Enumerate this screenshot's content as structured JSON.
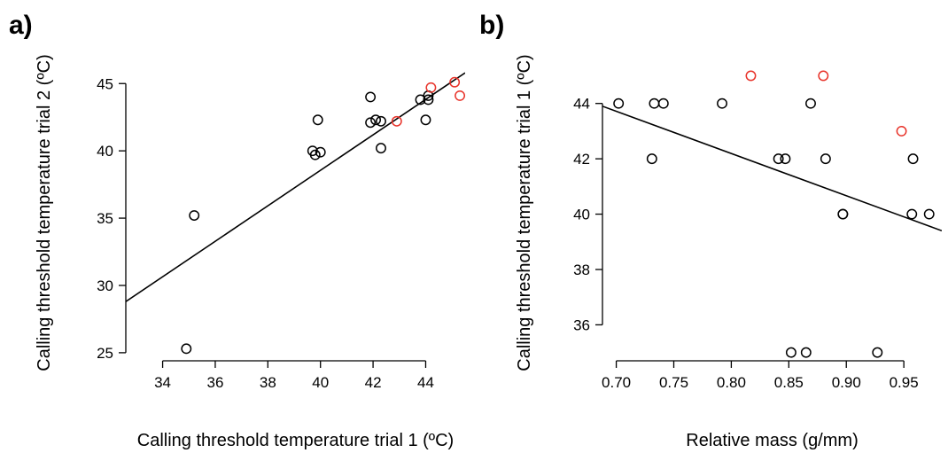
{
  "chart_data": [
    {
      "type": "scatter",
      "panel_label": "a)",
      "xlabel": "Calling threshold temperature trial 1 (ºC)",
      "ylabel": "Calling threshold temperature trial 2 (ºC)",
      "xlim": [
        32.6,
        45.5
      ],
      "ylim": [
        24.4,
        46.4
      ],
      "xticks": [
        34,
        36,
        38,
        40,
        42,
        44
      ],
      "yticks": [
        25,
        30,
        35,
        40,
        45
      ],
      "grid": false,
      "series": [
        {
          "color": "#000000",
          "points": [
            {
              "x": 34.9,
              "y": 25.3
            },
            {
              "x": 35.2,
              "y": 35.2
            },
            {
              "x": 39.7,
              "y": 40.0
            },
            {
              "x": 39.8,
              "y": 39.7
            },
            {
              "x": 40.0,
              "y": 39.9
            },
            {
              "x": 39.9,
              "y": 42.3
            },
            {
              "x": 41.9,
              "y": 44.0
            },
            {
              "x": 41.9,
              "y": 42.1
            },
            {
              "x": 42.1,
              "y": 42.3
            },
            {
              "x": 42.3,
              "y": 42.2
            },
            {
              "x": 42.3,
              "y": 40.2
            },
            {
              "x": 43.8,
              "y": 43.8
            },
            {
              "x": 44.0,
              "y": 42.3
            },
            {
              "x": 44.1,
              "y": 43.8
            },
            {
              "x": 44.1,
              "y": 44.1
            }
          ]
        },
        {
          "color": "#e8332a",
          "points": [
            {
              "x": 42.9,
              "y": 42.2
            },
            {
              "x": 44.2,
              "y": 44.7
            },
            {
              "x": 45.1,
              "y": 45.1
            },
            {
              "x": 45.3,
              "y": 44.1
            }
          ]
        }
      ],
      "fit_line": {
        "x": [
          32.6,
          45.5
        ],
        "y": [
          28.8,
          45.8
        ]
      }
    },
    {
      "type": "scatter",
      "panel_label": "b)",
      "xlabel": "Relative mass (g/mm)",
      "ylabel": "Calling threshold temperature trial 1 (ºC)",
      "xlim": [
        0.688,
        0.983
      ],
      "ylim": [
        34.7,
        45.4
      ],
      "xticks": [
        "0.70",
        "0.75",
        "0.80",
        "0.85",
        "0.90",
        "0.95"
      ],
      "yticks": [
        36,
        38,
        40,
        42,
        44
      ],
      "grid": false,
      "series": [
        {
          "color": "#000000",
          "points": [
            {
              "x": 0.702,
              "y": 44
            },
            {
              "x": 0.731,
              "y": 42
            },
            {
              "x": 0.733,
              "y": 44
            },
            {
              "x": 0.741,
              "y": 44
            },
            {
              "x": 0.792,
              "y": 44
            },
            {
              "x": 0.841,
              "y": 42
            },
            {
              "x": 0.847,
              "y": 42
            },
            {
              "x": 0.852,
              "y": 35
            },
            {
              "x": 0.865,
              "y": 35
            },
            {
              "x": 0.869,
              "y": 44
            },
            {
              "x": 0.882,
              "y": 42
            },
            {
              "x": 0.897,
              "y": 40
            },
            {
              "x": 0.897,
              "y": 40
            },
            {
              "x": 0.927,
              "y": 35
            },
            {
              "x": 0.957,
              "y": 40
            },
            {
              "x": 0.958,
              "y": 42
            },
            {
              "x": 0.972,
              "y": 40
            }
          ]
        },
        {
          "color": "#e8332a",
          "points": [
            {
              "x": 0.817,
              "y": 45
            },
            {
              "x": 0.88,
              "y": 45
            },
            {
              "x": 0.948,
              "y": 43
            }
          ]
        }
      ],
      "fit_line": {
        "x": [
          0.688,
          0.983
        ],
        "y": [
          43.9,
          39.4
        ]
      }
    }
  ]
}
